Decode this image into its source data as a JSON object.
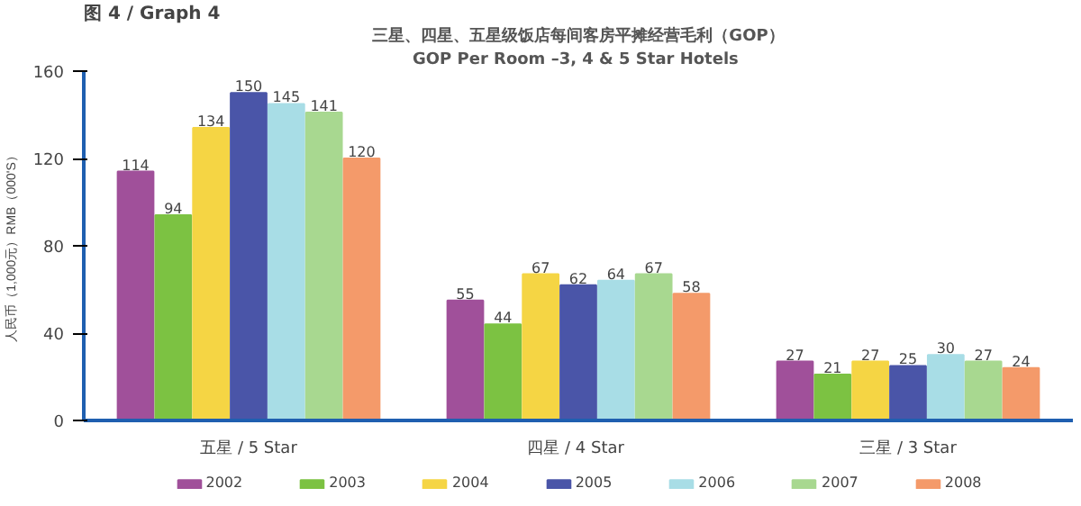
{
  "chart_data": {
    "type": "bar",
    "title": "三星、四星、五星级饭店每间客房平摊经营毛利（GOP）",
    "subtitle": "GOP Per Room –3, 4  & 5 Star Hotels",
    "annotations": [
      "图 4 / Graph 4"
    ],
    "ylabel": "人民币（1,000元）RMB（000'S）",
    "categories": [
      "五星 / 5 Star",
      "四星 /  4 Star",
      "三星 / 3 Star"
    ],
    "series": [
      {
        "name": "2002",
        "color": "#a0509a",
        "values": [
          114,
          55,
          27
        ]
      },
      {
        "name": "2003",
        "color": "#7cc242",
        "values": [
          94,
          44,
          21
        ]
      },
      {
        "name": "2004",
        "color": "#f5d544",
        "values": [
          134,
          67,
          27
        ]
      },
      {
        "name": "2005",
        "color": "#4a55a8",
        "values": [
          150,
          62,
          25
        ]
      },
      {
        "name": "2006",
        "color": "#a8dde6",
        "values": [
          145,
          64,
          30
        ]
      },
      {
        "name": "2007",
        "color": "#a8d890",
        "values": [
          141,
          67,
          27
        ]
      },
      {
        "name": "2008",
        "color": "#f49a6a",
        "values": [
          120,
          58,
          24
        ]
      }
    ],
    "ylim": [
      0,
      160
    ],
    "yticks": [
      0,
      40,
      80,
      120,
      160
    ],
    "data_labels": true,
    "legend": "bottom",
    "grid": false
  }
}
